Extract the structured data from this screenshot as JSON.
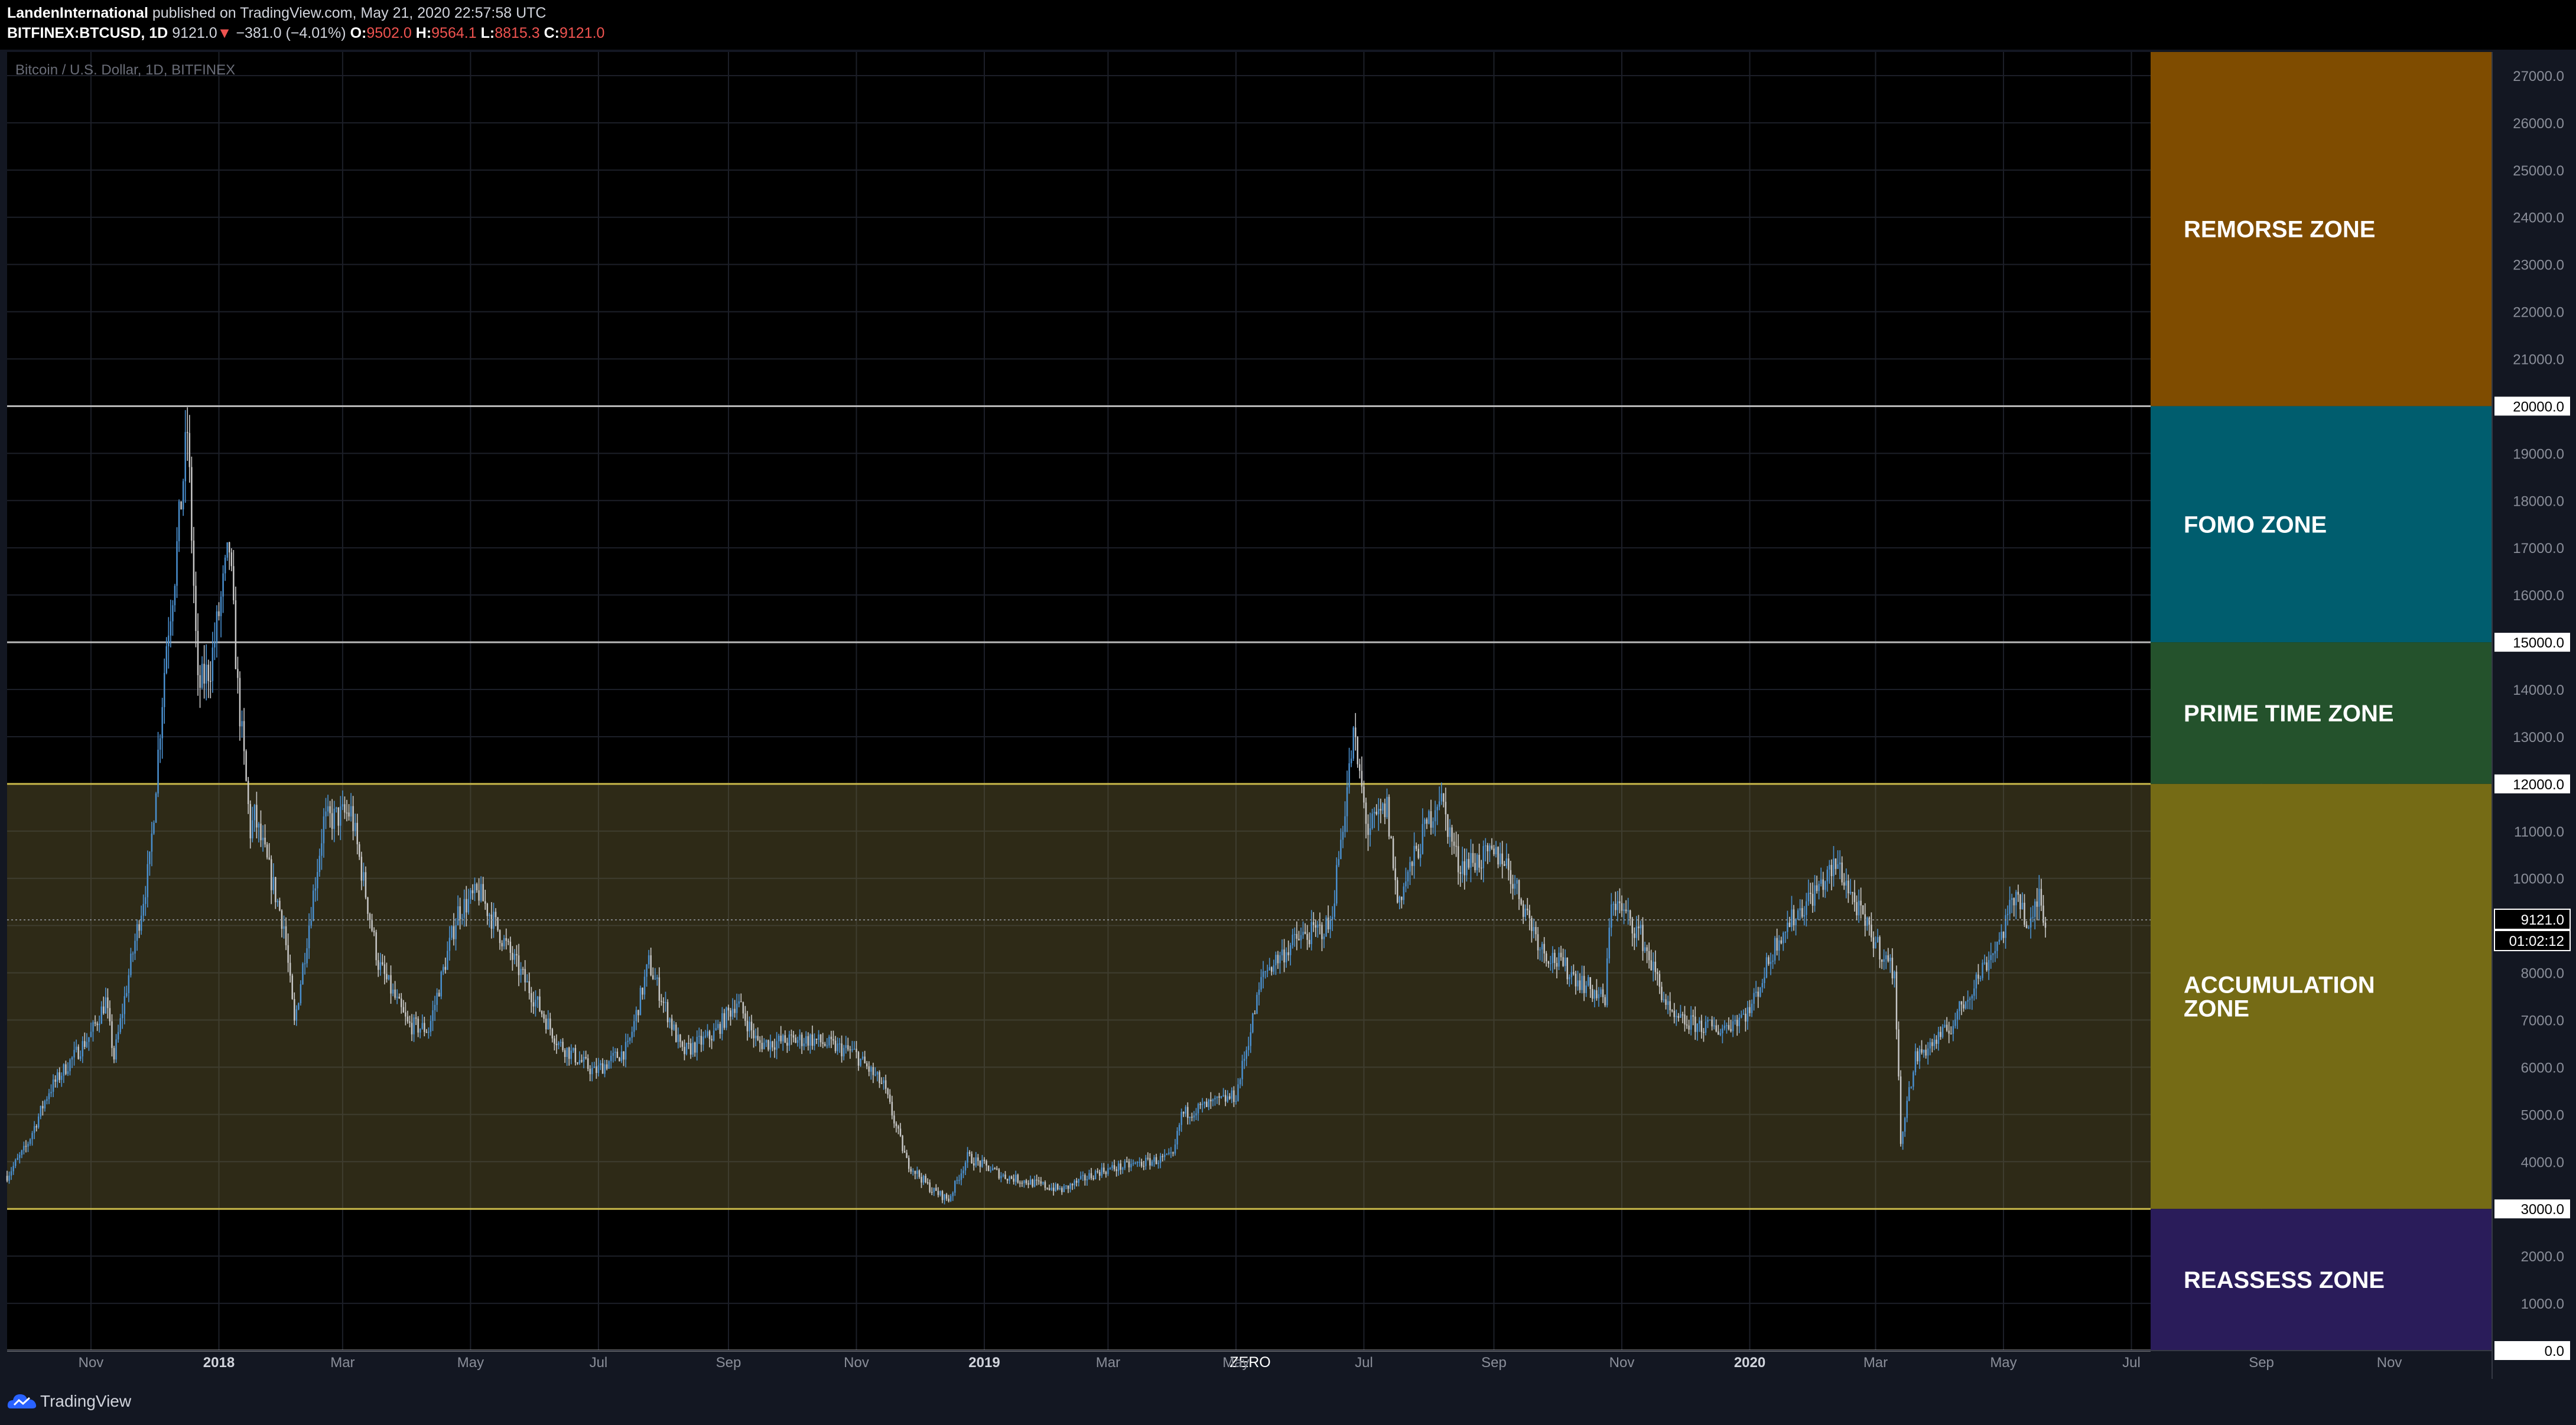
{
  "header": {
    "author": "LandenInternational",
    "published_text": "published on TradingView.com, May 21, 2020 22:57:58 UTC",
    "symbol": "BITFINEX:BTCUSD, 1D",
    "last": "9121.0",
    "arrow": "▼",
    "change": "−381.0 (−4.01%)",
    "o_label": "O:",
    "o_value": "9502.0",
    "h_label": "H:",
    "h_value": "9564.1",
    "l_label": "L:",
    "l_value": "8815.3",
    "c_label": "C:",
    "c_value": "9121.0"
  },
  "footer": {
    "brand": "TradingView"
  },
  "chart_data": {
    "type": "candlestick",
    "title": "Bitcoin / U.S. Dollar, 1D, BITFINEX",
    "ylim": [
      0,
      27500
    ],
    "y_ticks": [
      "0.0",
      "1000.0",
      "2000.0",
      "3000.0",
      "4000.0",
      "5000.0",
      "6000.0",
      "7000.0",
      "8000.0",
      "9000.0",
      "10000.0",
      "11000.0",
      "12000.0",
      "13000.0",
      "14000.0",
      "15000.0",
      "16000.0",
      "17000.0",
      "18000.0",
      "19000.0",
      "20000.0",
      "21000.0",
      "22000.0",
      "23000.0",
      "24000.0",
      "25000.0",
      "26000.0",
      "27000.0"
    ],
    "x_ticks": [
      "Nov",
      "2018",
      "Mar",
      "May",
      "Jul",
      "Sep",
      "Nov",
      "2019",
      "Mar",
      "May",
      "Jul",
      "Sep",
      "Nov",
      "2020",
      "Mar",
      "May",
      "Jul",
      "Sep",
      "Nov"
    ],
    "x_tick_dates": [
      "2017-11-01",
      "2018-01-01",
      "2018-03-01",
      "2018-05-01",
      "2018-07-01",
      "2018-09-01",
      "2018-11-01",
      "2019-01-01",
      "2019-03-01",
      "2019-05-01",
      "2019-07-01",
      "2019-09-01",
      "2019-11-01",
      "2020-01-01",
      "2020-03-01",
      "2020-05-01",
      "2020-07-01",
      "2020-09-01",
      "2020-11-01"
    ],
    "x_range": [
      "2017-09-22",
      "2020-12-20"
    ],
    "price_path": [
      [
        "2017-09-22",
        3700
      ],
      [
        "2017-10-01",
        4300
      ],
      [
        "2017-10-12",
        5500
      ],
      [
        "2017-10-20",
        6000
      ],
      [
        "2017-11-01",
        6700
      ],
      [
        "2017-11-08",
        7400
      ],
      [
        "2017-11-12",
        6200
      ],
      [
        "2017-11-20",
        8200
      ],
      [
        "2017-11-29",
        10300
      ],
      [
        "2017-12-07",
        15000
      ],
      [
        "2017-12-11",
        16500
      ],
      [
        "2017-12-17",
        19500
      ],
      [
        "2017-12-22",
        14000
      ],
      [
        "2017-12-28",
        14500
      ],
      [
        "2018-01-06",
        17000
      ],
      [
        "2018-01-10",
        14000
      ],
      [
        "2018-01-16",
        11000
      ],
      [
        "2018-01-18",
        11300
      ],
      [
        "2018-02-01",
        9000
      ],
      [
        "2018-02-06",
        6900
      ],
      [
        "2018-02-20",
        11200
      ],
      [
        "2018-03-05",
        11400
      ],
      [
        "2018-03-18",
        8200
      ],
      [
        "2018-04-01",
        6900
      ],
      [
        "2018-04-11",
        6800
      ],
      [
        "2018-04-25",
        9300
      ],
      [
        "2018-05-05",
        9700
      ],
      [
        "2018-05-20",
        8400
      ],
      [
        "2018-06-12",
        6500
      ],
      [
        "2018-06-29",
        5900
      ],
      [
        "2018-07-15",
        6400
      ],
      [
        "2018-07-25",
        8200
      ],
      [
        "2018-08-10",
        6300
      ],
      [
        "2018-08-25",
        6700
      ],
      [
        "2018-09-05",
        7400
      ],
      [
        "2018-09-15",
        6500
      ],
      [
        "2018-10-10",
        6600
      ],
      [
        "2018-10-31",
        6300
      ],
      [
        "2018-11-14",
        5600
      ],
      [
        "2018-11-25",
        4000
      ],
      [
        "2018-12-07",
        3400
      ],
      [
        "2018-12-15",
        3200
      ],
      [
        "2018-12-24",
        4100
      ],
      [
        "2019-01-10",
        3700
      ],
      [
        "2019-02-07",
        3400
      ],
      [
        "2019-02-25",
        3800
      ],
      [
        "2019-04-01",
        4100
      ],
      [
        "2019-04-05",
        5000
      ],
      [
        "2019-05-01",
        5400
      ],
      [
        "2019-05-14",
        8000
      ],
      [
        "2019-05-30",
        8700
      ],
      [
        "2019-06-15",
        9000
      ],
      [
        "2019-06-26",
        13000
      ],
      [
        "2019-07-03",
        11000
      ],
      [
        "2019-07-12",
        11500
      ],
      [
        "2019-07-17",
        9500
      ],
      [
        "2019-08-06",
        11800
      ],
      [
        "2019-08-15",
        10300
      ],
      [
        "2019-09-05",
        10500
      ],
      [
        "2019-09-24",
        8500
      ],
      [
        "2019-10-24",
        7400
      ],
      [
        "2019-10-27",
        9600
      ],
      [
        "2019-11-10",
        8800
      ],
      [
        "2019-11-25",
        7000
      ],
      [
        "2019-12-18",
        6800
      ],
      [
        "2020-01-01",
        7200
      ],
      [
        "2020-01-15",
        8800
      ],
      [
        "2020-02-12",
        10300
      ],
      [
        "2020-02-25",
        9000
      ],
      [
        "2020-03-10",
        8000
      ],
      [
        "2020-03-13",
        4500
      ],
      [
        "2020-03-20",
        6200
      ],
      [
        "2020-04-05",
        6800
      ],
      [
        "2020-04-30",
        8800
      ],
      [
        "2020-05-08",
        9800
      ],
      [
        "2020-05-13",
        8800
      ],
      [
        "2020-05-18",
        9700
      ],
      [
        "2020-05-21",
        9121
      ]
    ],
    "zones": [
      {
        "name": "REMORSE ZONE",
        "from": 20000,
        "to": 27500,
        "color": "#7f4c00"
      },
      {
        "name": "FOMO ZONE",
        "from": 15000,
        "to": 20000,
        "color": "#005d6e"
      },
      {
        "name": "PRIME TIME ZONE",
        "from": 12000,
        "to": 15000,
        "color": "#24522c"
      },
      {
        "name": "ACCUMULATION ZONE",
        "from": 3000,
        "to": 12000,
        "color": "#756b15"
      },
      {
        "name": "REASSESS ZONE",
        "from": 0,
        "to": 3000,
        "color": "#2a1c5a"
      }
    ],
    "zone_lines": [
      0,
      3000,
      12000,
      15000,
      20000
    ],
    "accumulation_band": [
      3000,
      12000
    ],
    "zero_label": "ZERO",
    "last_price_label": "9121.0",
    "countdown_label": "01:02:12",
    "colors": {
      "up": "#4a90d0",
      "down": "#c8c8c8",
      "background": "#000000"
    }
  }
}
